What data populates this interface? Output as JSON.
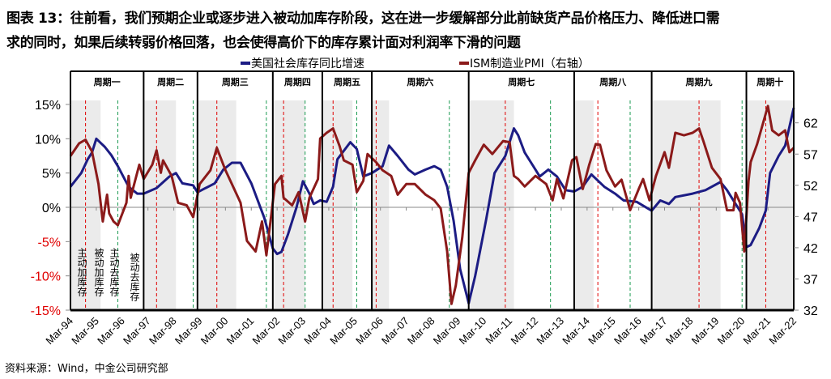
{
  "title_line1": "图表 13：往前看，我们预期企业或逐步进入被动加库存阶段，这在进一步缓解部分此前缺货产品价格压力、降低进口需",
  "title_line2": "求的同时，如果后续转弱价格回落，也会使得高价下的库存累计面对利润率下滑的问题",
  "source": "资料来源：Wind，中金公司研究部",
  "chart_data": {
    "type": "line",
    "title": "",
    "x_range": [
      "1994-03",
      "2022-03"
    ],
    "x_tick_labels": [
      "Mar-94",
      "Mar-95",
      "Mar-96",
      "Mar-97",
      "Mar-98",
      "Mar-99",
      "Mar-00",
      "Mar-01",
      "Mar-02",
      "Mar-03",
      "Mar-04",
      "Mar-05",
      "Mar-06",
      "Mar-07",
      "Mar-08",
      "Mar-09",
      "Mar-10",
      "Mar-11",
      "Mar-12",
      "Mar-13",
      "Mar-14",
      "Mar-15",
      "Mar-16",
      "Mar-17",
      "Mar-18",
      "Mar-19",
      "Mar-20",
      "Mar-21",
      "Mar-22"
    ],
    "y_left": {
      "range": [
        -15,
        15
      ],
      "ticks": [
        "15%",
        "10%",
        "5%",
        "0%",
        "-5%",
        "-10%",
        "-15%"
      ],
      "negative_color": "#e00000"
    },
    "y_right": {
      "range": [
        32,
        62
      ],
      "ticks": [
        "62",
        "57",
        "52",
        "47",
        "42",
        "37",
        "32"
      ],
      "tick_values": [
        62,
        57,
        52,
        47,
        42,
        37,
        32
      ]
    },
    "legend": {
      "placement": "top"
    },
    "series": [
      {
        "name": "美国社会库存同比增速",
        "axis": "left",
        "color": "#1c1c84",
        "points": [
          [
            "1994-03",
            3
          ],
          [
            "1994-08",
            5
          ],
          [
            "1994-11",
            7
          ],
          [
            "1995-01",
            8
          ],
          [
            "1995-03",
            10
          ],
          [
            "1995-07",
            8.8
          ],
          [
            "1995-10",
            7.6
          ],
          [
            "1996-01",
            6
          ],
          [
            "1996-06",
            3
          ],
          [
            "1996-10",
            2
          ],
          [
            "1997-01",
            2
          ],
          [
            "1997-07",
            2.8
          ],
          [
            "1998-01",
            4.5
          ],
          [
            "1998-04",
            5
          ],
          [
            "1998-07",
            3.5
          ],
          [
            "1998-12",
            3.2
          ],
          [
            "1999-02",
            2.2
          ],
          [
            "1999-10",
            3.5
          ],
          [
            "2000-02",
            5.5
          ],
          [
            "2000-06",
            6.5
          ],
          [
            "2000-10",
            6.5
          ],
          [
            "2001-03",
            3.5
          ],
          [
            "2001-09",
            -1.5
          ],
          [
            "2002-01",
            -6
          ],
          [
            "2002-03",
            -6.8
          ],
          [
            "2002-05",
            -6.5
          ],
          [
            "2002-08",
            -4
          ],
          [
            "2002-12",
            0
          ],
          [
            "2003-03",
            3.8
          ],
          [
            "2003-06",
            2
          ],
          [
            "2003-08",
            0.5
          ],
          [
            "2003-11",
            1
          ],
          [
            "2004-02",
            0.8
          ],
          [
            "2004-05",
            3
          ],
          [
            "2004-07",
            7
          ],
          [
            "2005-01",
            9.5
          ],
          [
            "2005-04",
            8.5
          ],
          [
            "2005-07",
            4.5
          ],
          [
            "2005-11",
            5
          ],
          [
            "2006-04",
            6
          ],
          [
            "2006-07",
            9
          ],
          [
            "2006-11",
            7.5
          ],
          [
            "2007-04",
            5.5
          ],
          [
            "2007-07",
            4.8
          ],
          [
            "2007-12",
            5.5
          ],
          [
            "2008-04",
            6
          ],
          [
            "2008-07",
            5.5
          ],
          [
            "2008-10",
            3
          ],
          [
            "2009-01",
            -2
          ],
          [
            "2009-04",
            -9
          ],
          [
            "2009-08",
            -14
          ],
          [
            "2009-11",
            -10
          ],
          [
            "2010-04",
            -2
          ],
          [
            "2010-08",
            5
          ],
          [
            "2011-01",
            7.5
          ],
          [
            "2011-05",
            11.5
          ],
          [
            "2011-07",
            10.5
          ],
          [
            "2011-10",
            8
          ],
          [
            "2012-01",
            6.5
          ],
          [
            "2012-05",
            4.5
          ],
          [
            "2012-09",
            5.5
          ],
          [
            "2013-01",
            4.5
          ],
          [
            "2013-05",
            2.5
          ],
          [
            "2013-09",
            2.3
          ],
          [
            "2014-01",
            3
          ],
          [
            "2014-05",
            4.8
          ],
          [
            "2014-11",
            3
          ],
          [
            "2015-04",
            2
          ],
          [
            "2015-08",
            1
          ],
          [
            "2016-02",
            0.8
          ],
          [
            "2016-09",
            -0.5
          ],
          [
            "2017-01",
            1
          ],
          [
            "2017-05",
            0.5
          ],
          [
            "2017-08",
            1.5
          ],
          [
            "2018-04",
            2
          ],
          [
            "2018-10",
            2.5
          ],
          [
            "2019-05",
            3.7
          ],
          [
            "2019-08",
            2.5
          ],
          [
            "2019-12",
            0.5
          ],
          [
            "2020-03",
            -1
          ],
          [
            "2020-05",
            -5.8
          ],
          [
            "2020-07",
            -5.5
          ],
          [
            "2020-11",
            -3
          ],
          [
            "2021-02",
            -0.5
          ],
          [
            "2021-04",
            5
          ],
          [
            "2021-08",
            7.5
          ],
          [
            "2021-11",
            9
          ],
          [
            "2022-03",
            14.5
          ]
        ]
      },
      {
        "name": "ISM制造业PMI（右轴）",
        "axis": "right",
        "color": "#8b1a1a",
        "points": [
          [
            "1994-03",
            56.7
          ],
          [
            "1994-07",
            58.7
          ],
          [
            "1994-10",
            59.3
          ],
          [
            "1995-01",
            57.4
          ],
          [
            "1995-04",
            52.2
          ],
          [
            "1995-06",
            46.2
          ],
          [
            "1995-08",
            50.5
          ],
          [
            "1995-09",
            47.5
          ],
          [
            "1995-11",
            46.2
          ],
          [
            "1996-01",
            45.6
          ],
          [
            "1996-05",
            49.2
          ],
          [
            "1996-06",
            53.5
          ],
          [
            "1996-07",
            50
          ],
          [
            "1996-08",
            51.4
          ],
          [
            "1996-11",
            55.3
          ],
          [
            "1997-01",
            53
          ],
          [
            "1997-05",
            55.3
          ],
          [
            "1997-07",
            57.6
          ],
          [
            "1997-09",
            54
          ],
          [
            "1997-10",
            56
          ],
          [
            "1998-02",
            53.5
          ],
          [
            "1998-05",
            49.2
          ],
          [
            "1998-09",
            48.8
          ],
          [
            "1998-12",
            46.9
          ],
          [
            "1999-03",
            52.2
          ],
          [
            "1999-08",
            54.4
          ],
          [
            "1999-11",
            58
          ],
          [
            "2000-03",
            54.4
          ],
          [
            "2000-06",
            52.2
          ],
          [
            "2000-10",
            49.2
          ],
          [
            "2001-01",
            43.1
          ],
          [
            "2001-05",
            41.4
          ],
          [
            "2001-08",
            46.2
          ],
          [
            "2001-10",
            40.8
          ],
          [
            "2002-02",
            52.2
          ],
          [
            "2002-05",
            53.5
          ],
          [
            "2002-06",
            50
          ],
          [
            "2002-10",
            48.8
          ],
          [
            "2003-01",
            50.9
          ],
          [
            "2003-04",
            46.2
          ],
          [
            "2003-06",
            50
          ],
          [
            "2003-10",
            53
          ],
          [
            "2003-11",
            59.5
          ],
          [
            "2004-02",
            60.4
          ],
          [
            "2004-05",
            61.1
          ],
          [
            "2004-08",
            58.3
          ],
          [
            "2004-10",
            56
          ],
          [
            "2005-02",
            55.3
          ],
          [
            "2005-04",
            50.9
          ],
          [
            "2005-07",
            52.7
          ],
          [
            "2005-09",
            57
          ],
          [
            "2006-01",
            55.7
          ],
          [
            "2006-04",
            54.4
          ],
          [
            "2006-08",
            53.5
          ],
          [
            "2006-11",
            50.5
          ],
          [
            "2007-03",
            52.2
          ],
          [
            "2007-07",
            52.2
          ],
          [
            "2007-12",
            50.5
          ],
          [
            "2008-04",
            49.6
          ],
          [
            "2008-07",
            48.3
          ],
          [
            "2008-10",
            41.4
          ],
          [
            "2008-12",
            33
          ],
          [
            "2009-02",
            35.9
          ],
          [
            "2009-05",
            43.6
          ],
          [
            "2009-08",
            54
          ],
          [
            "2009-11",
            56
          ],
          [
            "2010-03",
            58.5
          ],
          [
            "2010-07",
            57
          ],
          [
            "2010-12",
            59.1
          ],
          [
            "2011-03",
            58.9
          ],
          [
            "2011-05",
            53.5
          ],
          [
            "2011-07",
            53
          ],
          [
            "2011-10",
            51.8
          ],
          [
            "2012-03",
            53.5
          ],
          [
            "2012-08",
            52.2
          ],
          [
            "2012-11",
            49.6
          ],
          [
            "2013-01",
            53
          ],
          [
            "2013-04",
            49.9
          ],
          [
            "2013-08",
            56
          ],
          [
            "2013-10",
            56.5
          ],
          [
            "2014-01",
            51.4
          ],
          [
            "2014-04",
            55.3
          ],
          [
            "2014-07",
            58.6
          ],
          [
            "2014-09",
            58.5
          ],
          [
            "2014-12",
            54.4
          ],
          [
            "2015-04",
            51.8
          ],
          [
            "2015-07",
            52.9
          ],
          [
            "2015-11",
            48
          ],
          [
            "2016-03",
            51.4
          ],
          [
            "2016-05",
            53
          ],
          [
            "2016-08",
            49.6
          ],
          [
            "2016-11",
            53.5
          ],
          [
            "2017-03",
            57.3
          ],
          [
            "2017-05",
            54.8
          ],
          [
            "2017-08",
            60.4
          ],
          [
            "2017-12",
            60
          ],
          [
            "2018-04",
            60.4
          ],
          [
            "2018-07",
            61.1
          ],
          [
            "2018-09",
            59.1
          ],
          [
            "2019-01",
            54.8
          ],
          [
            "2019-05",
            53
          ],
          [
            "2019-08",
            48
          ],
          [
            "2019-11",
            48
          ],
          [
            "2019-12",
            50.8
          ],
          [
            "2020-02",
            49.2
          ],
          [
            "2020-04",
            41.4
          ],
          [
            "2020-06",
            52.7
          ],
          [
            "2020-07",
            55.7
          ],
          [
            "2020-10",
            58.6
          ],
          [
            "2021-03",
            64.7
          ],
          [
            "2021-05",
            60.8
          ],
          [
            "2021-08",
            60
          ],
          [
            "2021-11",
            60.8
          ],
          [
            "2022-01",
            57.3
          ],
          [
            "2022-03",
            58
          ]
        ]
      }
    ],
    "periods": [
      {
        "label": "周期一",
        "start": "1994-03",
        "end": "1997-01",
        "shade_end": "1995-05"
      },
      {
        "label": "周期二",
        "start": "1997-01",
        "end": "1999-02",
        "shade_end": "1998-04"
      },
      {
        "label": "周期三",
        "start": "1999-02",
        "end": "2002-01",
        "shade_end": "2000-08"
      },
      {
        "label": "周期四",
        "start": "2002-01",
        "end": "2003-12",
        "shade_end": "2003-04"
      },
      {
        "label": "周期五",
        "start": "2003-12",
        "end": "2005-11",
        "shade_end": "2005-02"
      },
      {
        "label": "周期六",
        "start": "2005-11",
        "end": "2009-08",
        "shade_end": "2006-07"
      },
      {
        "label": "周期七",
        "start": "2009-08",
        "end": "2013-09",
        "shade_end": "2011-05"
      },
      {
        "label": "周期八",
        "start": "2013-09",
        "end": "2016-09",
        "shade_end": "2014-06"
      },
      {
        "label": "周期九",
        "start": "2016-09",
        "end": "2020-05",
        "shade_end": "2019-05"
      },
      {
        "label": "周期十",
        "start": "2020-05",
        "end": "2022-03",
        "shade_end": "2022-03"
      }
    ],
    "red_dashed_markers": [
      "1994-10",
      "1997-07",
      "1999-11",
      "2002-06",
      "2004-05",
      "2006-01",
      "2011-01",
      "2014-08",
      "2018-07",
      "2021-02"
    ],
    "green_dashed_markers": [
      "1996-01",
      "1998-12",
      "2001-10",
      "2003-04",
      "2005-04",
      "2008-11",
      "2012-10",
      "2015-11",
      "2020-03"
    ],
    "phase_labels": [
      "主动加库存",
      "被动加库存",
      "主动去库存",
      "被动去库存"
    ],
    "colors": {
      "shade": "#ebebeb",
      "red_marker": "#e00000",
      "green_marker": "#1a9a50",
      "zero_line": "#888888"
    }
  }
}
